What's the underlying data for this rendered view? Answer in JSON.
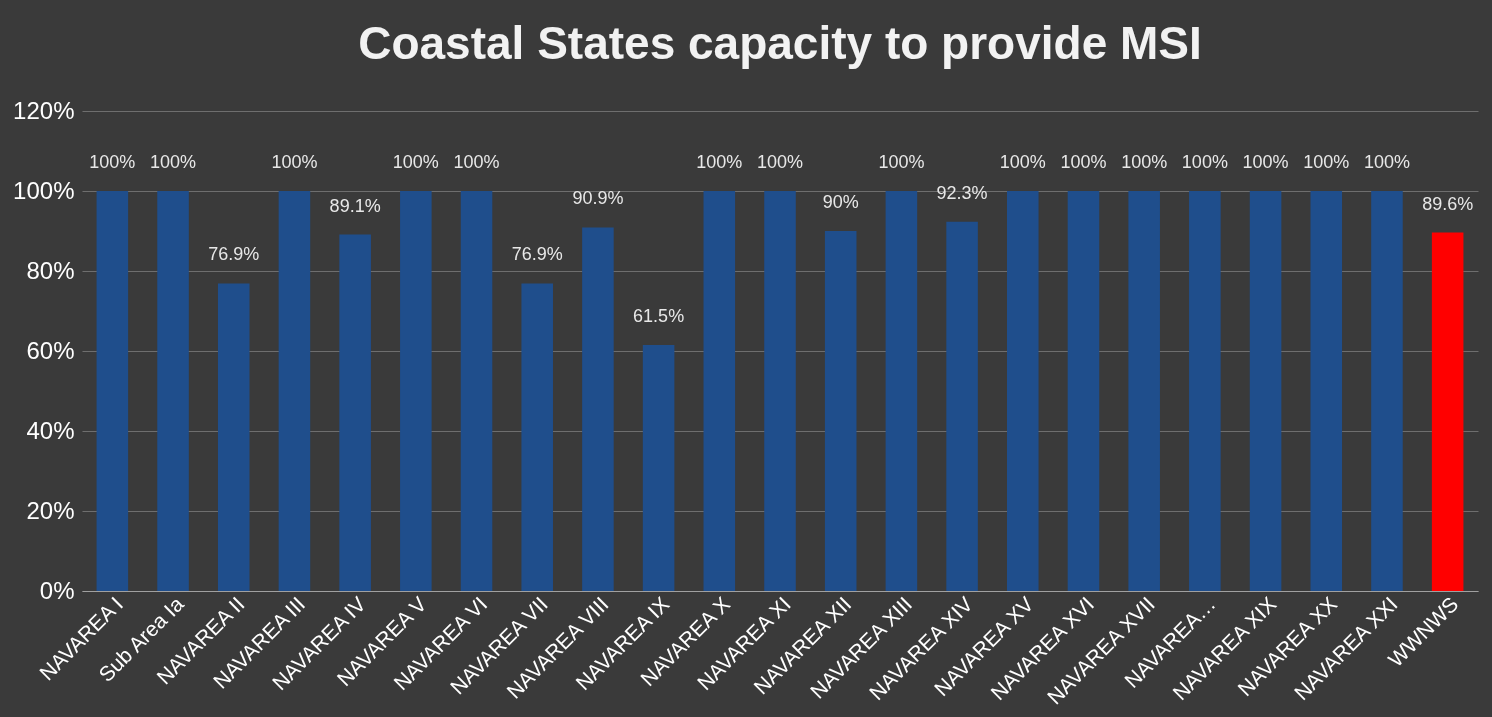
{
  "chart_data": {
    "type": "bar",
    "title": "Coastal States capacity to provide MSI",
    "categories": [
      "NAVAREA I",
      "Sub Area Ia",
      "NAVAREA II",
      "NAVAREA III",
      "NAVAREA IV",
      "NAVAREA V",
      "NAVAREA VI",
      "NAVAREA VII",
      "NAVAREA VIII",
      "NAVAREA IX",
      "NAVAREA X",
      "NAVAREA XI",
      "NAVAREA XII",
      "NAVAREA XIII",
      "NAVAREA XIV",
      "NAVAREA XV",
      "NAVAREA XVI",
      "NAVAREA XVII",
      "NAVAREA…",
      "NAVAREA XIX",
      "NAVAREA XX",
      "NAVAREA XXI",
      "WWNWS"
    ],
    "values": [
      100,
      100,
      76.9,
      100,
      89.1,
      100,
      100,
      76.9,
      90.9,
      61.5,
      100,
      100,
      90,
      100,
      92.3,
      100,
      100,
      100,
      100,
      100,
      100,
      100,
      89.6
    ],
    "value_labels": [
      "100%",
      "100%",
      "76.9%",
      "100%",
      "89.1%",
      "100%",
      "100%",
      "76.9%",
      "90.9%",
      "61.5%",
      "100%",
      "100%",
      "90%",
      "100%",
      "92.3%",
      "100%",
      "100%",
      "100%",
      "100%",
      "100%",
      "100%",
      "100%",
      "89.6%"
    ],
    "colors": [
      "#1f4e8c",
      "#1f4e8c",
      "#1f4e8c",
      "#1f4e8c",
      "#1f4e8c",
      "#1f4e8c",
      "#1f4e8c",
      "#1f4e8c",
      "#1f4e8c",
      "#1f4e8c",
      "#1f4e8c",
      "#1f4e8c",
      "#1f4e8c",
      "#1f4e8c",
      "#1f4e8c",
      "#1f4e8c",
      "#1f4e8c",
      "#1f4e8c",
      "#1f4e8c",
      "#1f4e8c",
      "#1f4e8c",
      "#1f4e8c",
      "#ff0000"
    ],
    "ylim": [
      0,
      120
    ],
    "yticks": [
      {
        "value": 0,
        "label": "0%"
      },
      {
        "value": 20,
        "label": "20%"
      },
      {
        "value": 40,
        "label": "40%"
      },
      {
        "value": 60,
        "label": "60%"
      },
      {
        "value": 80,
        "label": "80%"
      },
      {
        "value": 100,
        "label": "100%"
      },
      {
        "value": 120,
        "label": "120%"
      }
    ],
    "grid": "y",
    "legend": false
  }
}
